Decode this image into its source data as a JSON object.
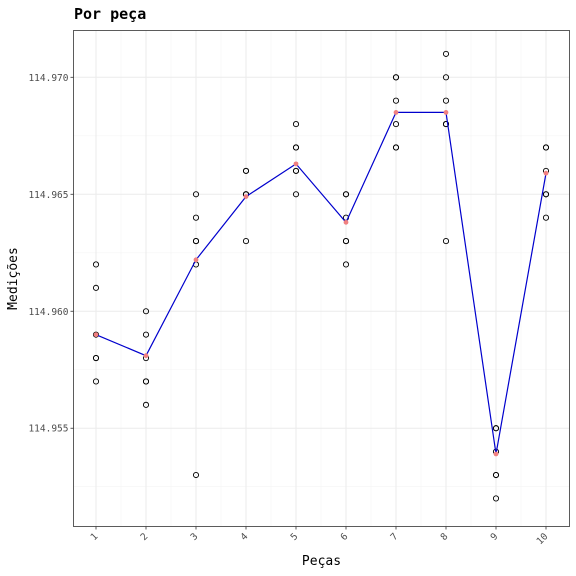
{
  "chart_data": {
    "type": "scatter",
    "title": "Por peça",
    "xlabel": "Peças",
    "ylabel": "Medições",
    "categories": [
      "1",
      "2",
      "3",
      "4",
      "5",
      "6",
      "7",
      "8",
      "9",
      "10"
    ],
    "yticks": [
      114.955,
      114.96,
      114.965,
      114.97
    ],
    "ytick_labels": [
      "114.955",
      "114.960",
      "114.965",
      "114.970"
    ],
    "ylim": [
      114.9508,
      114.972
    ],
    "grid": true,
    "observations": [
      {
        "part": "1",
        "values": [
          114.962,
          114.961,
          114.958,
          114.958,
          114.957,
          114.959
        ]
      },
      {
        "part": "2",
        "values": [
          114.96,
          114.959,
          114.958,
          114.957,
          114.957,
          114.956
        ]
      },
      {
        "part": "3",
        "values": [
          114.965,
          114.964,
          114.963,
          114.963,
          114.962,
          114.953
        ]
      },
      {
        "part": "4",
        "values": [
          114.966,
          114.966,
          114.965,
          114.965,
          114.963,
          114.965
        ]
      },
      {
        "part": "5",
        "values": [
          114.968,
          114.967,
          114.967,
          114.966,
          114.966,
          114.965
        ]
      },
      {
        "part": "6",
        "values": [
          114.965,
          114.965,
          114.964,
          114.963,
          114.962,
          114.963
        ]
      },
      {
        "part": "7",
        "values": [
          114.97,
          114.97,
          114.969,
          114.968,
          114.967,
          114.967
        ]
      },
      {
        "part": "8",
        "values": [
          114.971,
          114.97,
          114.969,
          114.968,
          114.968,
          114.963
        ]
      },
      {
        "part": "9",
        "values": [
          114.955,
          114.955,
          114.953,
          114.953,
          114.952,
          114.954
        ]
      },
      {
        "part": "10",
        "values": [
          114.967,
          114.967,
          114.966,
          114.965,
          114.965,
          114.964
        ]
      }
    ],
    "means": [
      114.959,
      114.9581,
      114.9622,
      114.9649,
      114.9663,
      114.9638,
      114.9685,
      114.9685,
      114.9539,
      114.9659
    ],
    "mean_point_color": "#f08080",
    "mean_line_color": "#0000cd",
    "observation_color": "#000000"
  }
}
